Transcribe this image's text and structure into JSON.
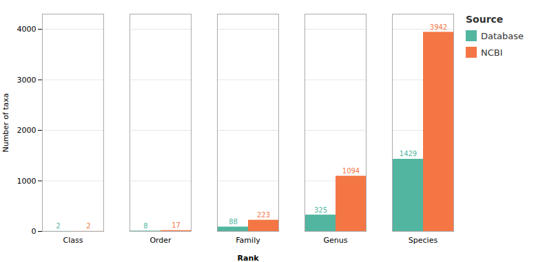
{
  "chart_data": {
    "type": "bar",
    "categories": [
      "Class",
      "Order",
      "Family",
      "Genus",
      "Species"
    ],
    "series": [
      {
        "name": "Database",
        "color": "#52b5a0",
        "values": [
          2,
          8,
          88,
          325,
          1429
        ]
      },
      {
        "name": "NCBI",
        "color": "#f47645",
        "values": [
          2,
          17,
          223,
          1094,
          3942
        ]
      }
    ],
    "xlabel": "Rank",
    "ylabel": "Number of taxa",
    "ylim": [
      0,
      4300
    ],
    "yticks": [
      0,
      1000,
      2000,
      3000,
      4000
    ],
    "grid": true,
    "data_labels": true,
    "legend": "right",
    "legend_title": "Source"
  }
}
